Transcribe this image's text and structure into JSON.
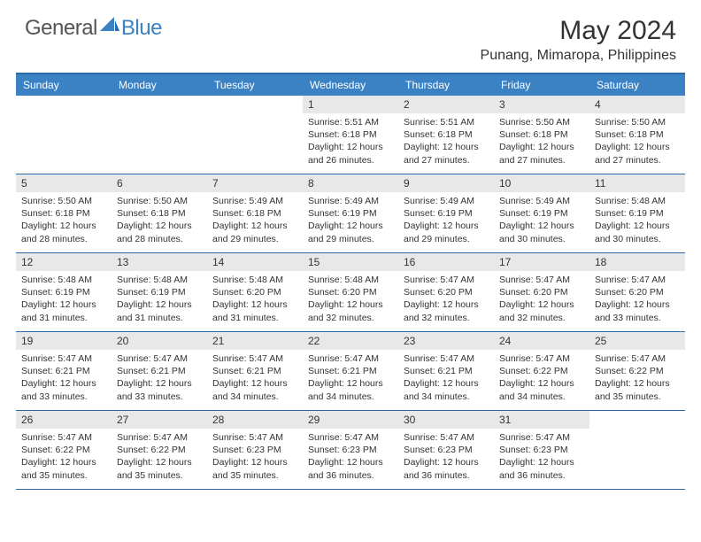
{
  "brand": {
    "text1": "General",
    "text2": "Blue"
  },
  "title": "May 2024",
  "location": "Punang, Mimaropa, Philippines",
  "colors": {
    "header_bg": "#3b82c4",
    "border": "#2a6aa8",
    "daynum_bg": "#e8e8e8",
    "text": "#333333",
    "brand_gray": "#555555",
    "brand_blue": "#3b82c4",
    "page_bg": "#ffffff"
  },
  "daysOfWeek": [
    "Sunday",
    "Monday",
    "Tuesday",
    "Wednesday",
    "Thursday",
    "Friday",
    "Saturday"
  ],
  "weeks": [
    [
      {
        "empty": true
      },
      {
        "empty": true
      },
      {
        "empty": true
      },
      {
        "n": "1",
        "sunrise": "5:51 AM",
        "sunset": "6:18 PM",
        "dl": "12 hours and 26 minutes."
      },
      {
        "n": "2",
        "sunrise": "5:51 AM",
        "sunset": "6:18 PM",
        "dl": "12 hours and 27 minutes."
      },
      {
        "n": "3",
        "sunrise": "5:50 AM",
        "sunset": "6:18 PM",
        "dl": "12 hours and 27 minutes."
      },
      {
        "n": "4",
        "sunrise": "5:50 AM",
        "sunset": "6:18 PM",
        "dl": "12 hours and 27 minutes."
      }
    ],
    [
      {
        "n": "5",
        "sunrise": "5:50 AM",
        "sunset": "6:18 PM",
        "dl": "12 hours and 28 minutes."
      },
      {
        "n": "6",
        "sunrise": "5:50 AM",
        "sunset": "6:18 PM",
        "dl": "12 hours and 28 minutes."
      },
      {
        "n": "7",
        "sunrise": "5:49 AM",
        "sunset": "6:18 PM",
        "dl": "12 hours and 29 minutes."
      },
      {
        "n": "8",
        "sunrise": "5:49 AM",
        "sunset": "6:19 PM",
        "dl": "12 hours and 29 minutes."
      },
      {
        "n": "9",
        "sunrise": "5:49 AM",
        "sunset": "6:19 PM",
        "dl": "12 hours and 29 minutes."
      },
      {
        "n": "10",
        "sunrise": "5:49 AM",
        "sunset": "6:19 PM",
        "dl": "12 hours and 30 minutes."
      },
      {
        "n": "11",
        "sunrise": "5:48 AM",
        "sunset": "6:19 PM",
        "dl": "12 hours and 30 minutes."
      }
    ],
    [
      {
        "n": "12",
        "sunrise": "5:48 AM",
        "sunset": "6:19 PM",
        "dl": "12 hours and 31 minutes."
      },
      {
        "n": "13",
        "sunrise": "5:48 AM",
        "sunset": "6:19 PM",
        "dl": "12 hours and 31 minutes."
      },
      {
        "n": "14",
        "sunrise": "5:48 AM",
        "sunset": "6:20 PM",
        "dl": "12 hours and 31 minutes."
      },
      {
        "n": "15",
        "sunrise": "5:48 AM",
        "sunset": "6:20 PM",
        "dl": "12 hours and 32 minutes."
      },
      {
        "n": "16",
        "sunrise": "5:47 AM",
        "sunset": "6:20 PM",
        "dl": "12 hours and 32 minutes."
      },
      {
        "n": "17",
        "sunrise": "5:47 AM",
        "sunset": "6:20 PM",
        "dl": "12 hours and 32 minutes."
      },
      {
        "n": "18",
        "sunrise": "5:47 AM",
        "sunset": "6:20 PM",
        "dl": "12 hours and 33 minutes."
      }
    ],
    [
      {
        "n": "19",
        "sunrise": "5:47 AM",
        "sunset": "6:21 PM",
        "dl": "12 hours and 33 minutes."
      },
      {
        "n": "20",
        "sunrise": "5:47 AM",
        "sunset": "6:21 PM",
        "dl": "12 hours and 33 minutes."
      },
      {
        "n": "21",
        "sunrise": "5:47 AM",
        "sunset": "6:21 PM",
        "dl": "12 hours and 34 minutes."
      },
      {
        "n": "22",
        "sunrise": "5:47 AM",
        "sunset": "6:21 PM",
        "dl": "12 hours and 34 minutes."
      },
      {
        "n": "23",
        "sunrise": "5:47 AM",
        "sunset": "6:21 PM",
        "dl": "12 hours and 34 minutes."
      },
      {
        "n": "24",
        "sunrise": "5:47 AM",
        "sunset": "6:22 PM",
        "dl": "12 hours and 34 minutes."
      },
      {
        "n": "25",
        "sunrise": "5:47 AM",
        "sunset": "6:22 PM",
        "dl": "12 hours and 35 minutes."
      }
    ],
    [
      {
        "n": "26",
        "sunrise": "5:47 AM",
        "sunset": "6:22 PM",
        "dl": "12 hours and 35 minutes."
      },
      {
        "n": "27",
        "sunrise": "5:47 AM",
        "sunset": "6:22 PM",
        "dl": "12 hours and 35 minutes."
      },
      {
        "n": "28",
        "sunrise": "5:47 AM",
        "sunset": "6:23 PM",
        "dl": "12 hours and 35 minutes."
      },
      {
        "n": "29",
        "sunrise": "5:47 AM",
        "sunset": "6:23 PM",
        "dl": "12 hours and 36 minutes."
      },
      {
        "n": "30",
        "sunrise": "5:47 AM",
        "sunset": "6:23 PM",
        "dl": "12 hours and 36 minutes."
      },
      {
        "n": "31",
        "sunrise": "5:47 AM",
        "sunset": "6:23 PM",
        "dl": "12 hours and 36 minutes."
      },
      {
        "empty": true
      }
    ]
  ],
  "labels": {
    "sunrise": "Sunrise:",
    "sunset": "Sunset:",
    "daylight": "Daylight:"
  }
}
